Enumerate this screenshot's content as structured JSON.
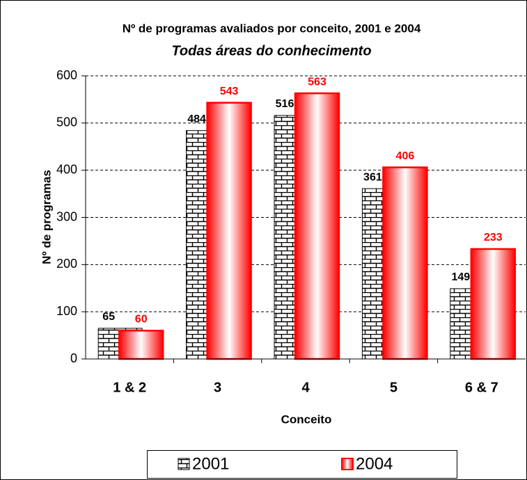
{
  "chart_data": {
    "type": "bar",
    "title": "Nº de programas avaliados por conceito, 2001 e 2004",
    "subtitle": "Todas áreas do conhecimento",
    "x_label": "Conceito",
    "y_label": "Nº de programas",
    "categories": [
      "1 & 2",
      "3",
      "4",
      "5",
      "6 & 7"
    ],
    "series": [
      {
        "name": "2001",
        "color": "#000000",
        "values": [
          65,
          484,
          516,
          361,
          149
        ]
      },
      {
        "name": "2004",
        "color": "#ff0000",
        "values": [
          60,
          543,
          563,
          406,
          233
        ]
      }
    ],
    "ylim": [
      0,
      600
    ],
    "yticks": [
      0,
      100,
      200,
      300,
      400,
      500,
      600
    ],
    "grid": true,
    "legend": "bottom"
  }
}
